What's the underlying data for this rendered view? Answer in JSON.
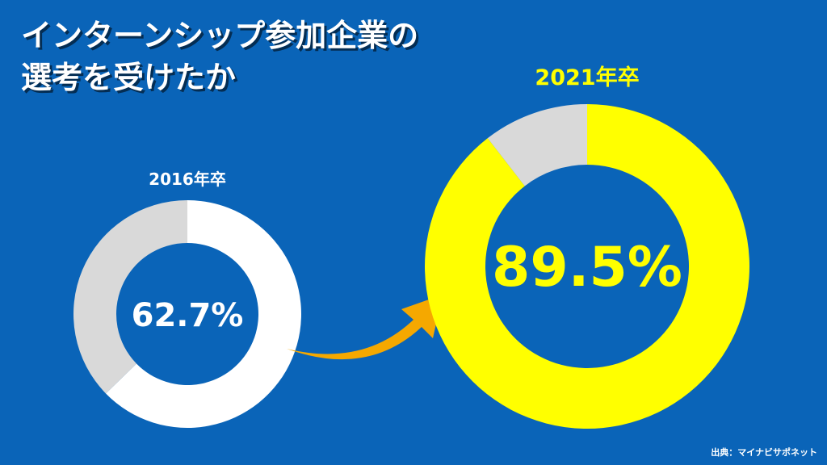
{
  "title": {
    "line1": "インターンシップ参加企業の",
    "line2": "選考を受けたか"
  },
  "source": "出典：マイナビサポネット",
  "colors": {
    "background": "#0a64b8",
    "remainder": "#d9d9d9",
    "chart_2016": "#ffffff",
    "chart_2021": "#ffff00",
    "arrow": "#f5a800"
  },
  "chart_data": [
    {
      "type": "pie",
      "title": "2016年卒",
      "center_label": "62.7%",
      "values": [
        62.7,
        37.3
      ]
    },
    {
      "type": "pie",
      "title": "2021年卒",
      "center_label": "89.5%",
      "values": [
        89.5,
        10.5
      ]
    }
  ]
}
